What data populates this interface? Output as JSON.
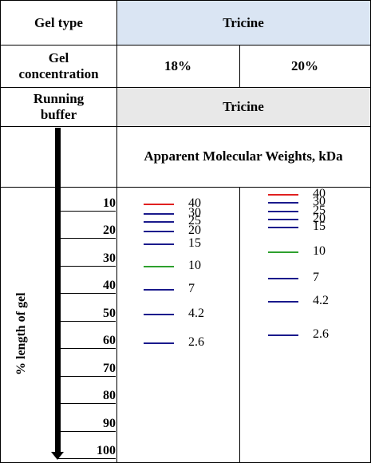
{
  "header": {
    "gel_type_label": "Gel type",
    "gel_type_value": "Tricine",
    "gel_conc_label": "Gel concentration",
    "conc_18": "18%",
    "conc_20": "20%",
    "running_buffer_label": "Running buffer",
    "running_buffer_value": "Tricine",
    "mw_header": "Apparent Molecular Weights, kDa"
  },
  "axis": {
    "label": "% length of gel",
    "ticks": [
      "10",
      "20",
      "30",
      "40",
      "50",
      "60",
      "70",
      "80",
      "90",
      "100"
    ]
  },
  "lanes": {
    "lane18": [
      {
        "mw": "40",
        "pct": 10,
        "color": "#e02020"
      },
      {
        "mw": "30",
        "pct": 13.5,
        "color": "#1a1a8c"
      },
      {
        "mw": "25",
        "pct": 16.5,
        "color": "#1a1a8c"
      },
      {
        "mw": "20",
        "pct": 20,
        "color": "#1a1a8c"
      },
      {
        "mw": "15",
        "pct": 24.5,
        "color": "#1a1a8c"
      },
      {
        "mw": "10",
        "pct": 32.5,
        "color": "#2ea02e"
      },
      {
        "mw": "7",
        "pct": 41,
        "color": "#1a1a8c"
      },
      {
        "mw": "4.2",
        "pct": 50,
        "color": "#1a1a8c"
      },
      {
        "mw": "2.6",
        "pct": 60.5,
        "color": "#1a1a8c"
      }
    ],
    "lane20": [
      {
        "mw": "40",
        "pct": 6.5,
        "color": "#e02020"
      },
      {
        "mw": "30",
        "pct": 9.5,
        "color": "#1a1a8c"
      },
      {
        "mw": "25",
        "pct": 12.5,
        "color": "#1a1a8c"
      },
      {
        "mw": "20",
        "pct": 15.5,
        "color": "#1a1a8c"
      },
      {
        "mw": "15",
        "pct": 18.5,
        "color": "#1a1a8c"
      },
      {
        "mw": "10",
        "pct": 27.5,
        "color": "#2ea02e"
      },
      {
        "mw": "7",
        "pct": 37,
        "color": "#1a1a8c"
      },
      {
        "mw": "4.2",
        "pct": 45.5,
        "color": "#1a1a8c"
      },
      {
        "mw": "2.6",
        "pct": 57.5,
        "color": "#1a1a8c"
      }
    ]
  }
}
